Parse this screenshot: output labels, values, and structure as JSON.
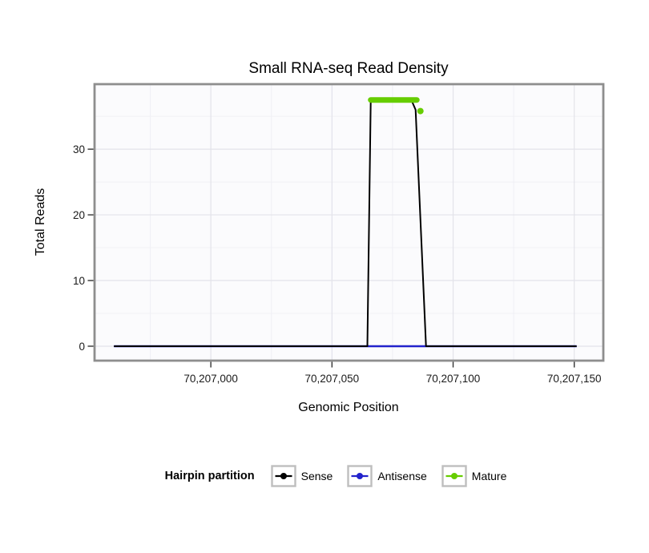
{
  "chart_data": {
    "type": "line",
    "title": "Small RNA-seq Read Density",
    "xlabel": "Genomic Position",
    "ylabel": "Total Reads",
    "xlim": [
      70206952,
      70207162
    ],
    "ylim": [
      -2.2,
      39.9
    ],
    "x_major_ticks": [
      70207000,
      70207050,
      70207100,
      70207150
    ],
    "x_tick_labels": [
      "70,207,000",
      "70,207,050",
      "70,207,100",
      "70,207,150"
    ],
    "x_minor_ticks": [
      70206975,
      70207025,
      70207075,
      70207125
    ],
    "y_major_ticks": [
      0,
      10,
      20,
      30
    ],
    "y_tick_labels": [
      "0",
      "10",
      "20",
      "30"
    ],
    "y_minor_ticks": [
      5,
      15,
      25,
      35
    ],
    "panel": {
      "background": "#FBFBFD",
      "border_color": "#8E8E8E",
      "grid_major": "#E3E3EA",
      "grid_minor": "#F0F0F5"
    },
    "series": [
      {
        "name": "Sense",
        "color": "#000000",
        "width": 2,
        "z": 2,
        "linecap": "butt",
        "points": [
          [
            70206960,
            0
          ],
          [
            70207064.6,
            0
          ],
          [
            70207066,
            37.3
          ],
          [
            70207083,
            37.3
          ],
          [
            70207084.5,
            36
          ],
          [
            70207088.8,
            0
          ],
          [
            70207151,
            0
          ]
        ]
      },
      {
        "name": "Antisense",
        "color": "#2222CC",
        "width": 2.4,
        "z": 1,
        "linecap": "butt",
        "points": [
          [
            70206960,
            0
          ],
          [
            70207151,
            0
          ]
        ]
      },
      {
        "name": "Mature",
        "color": "#66CD00",
        "width": 7,
        "z": 3,
        "linecap": "round",
        "points": [
          [
            70207066,
            37.5
          ],
          [
            70207085,
            37.5
          ]
        ],
        "marker_points": [
          [
            70207086.5,
            35.8
          ]
        ],
        "marker_r": 4
      }
    ],
    "legend": {
      "title": "Hairpin partition",
      "position": "bottom",
      "items": [
        {
          "label": "Sense",
          "color": "#000000"
        },
        {
          "label": "Antisense",
          "color": "#2222CC"
        },
        {
          "label": "Mature",
          "color": "#66CD00"
        }
      ]
    }
  }
}
